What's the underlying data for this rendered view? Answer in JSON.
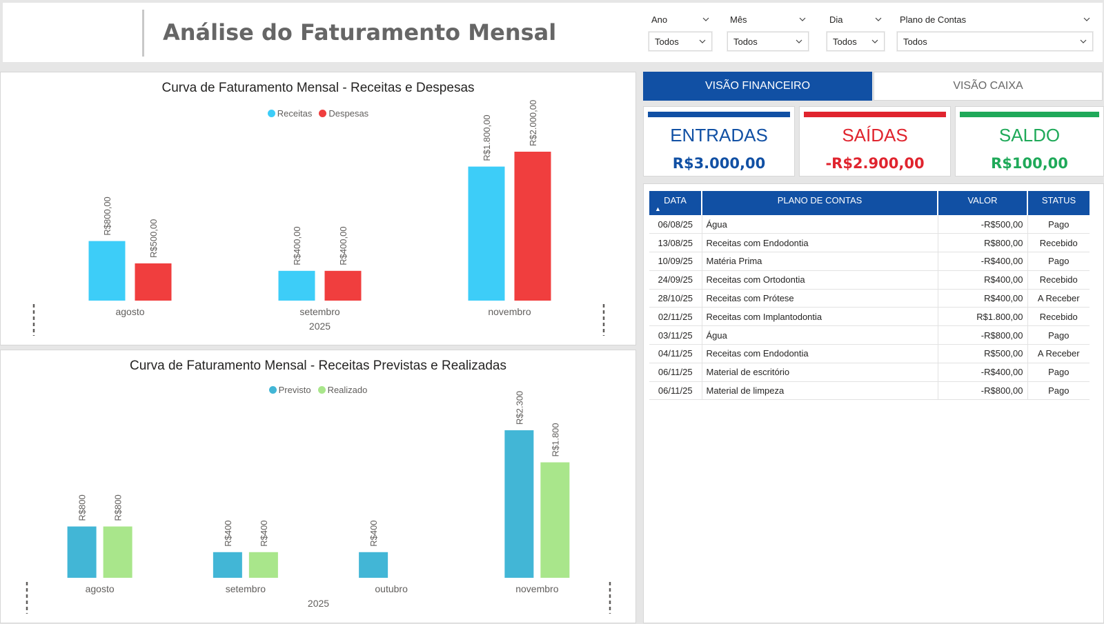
{
  "header": {
    "title": "Análise do Faturamento Mensal"
  },
  "filters": [
    {
      "label": "Ano",
      "value": "Todos"
    },
    {
      "label": "Mês",
      "value": "Todos"
    },
    {
      "label": "Dia",
      "value": "Todos"
    },
    {
      "label": "Plano de Contas",
      "value": "Todos"
    }
  ],
  "tabs": {
    "financeiro": "VISÃO FINANCEIRO",
    "caixa": "VISÃO CAIXA"
  },
  "cards": {
    "entradas": {
      "label": "ENTRADAS",
      "value": "R$3.000,00",
      "color": "#1150a4"
    },
    "saidas": {
      "label": "SAÍDAS",
      "value": "-R$2.900,00",
      "color": "#e0242e"
    },
    "saldo": {
      "label": "SALDO",
      "value": "R$100,00",
      "color": "#1fa959"
    }
  },
  "table": {
    "headers": {
      "data": "DATA",
      "plano": "PLANO DE CONTAS",
      "valor": "VALOR",
      "status": "STATUS"
    },
    "rows": [
      {
        "data": "06/08/25",
        "plano": "Água",
        "valor": "-R$500,00",
        "status": "Pago"
      },
      {
        "data": "13/08/25",
        "plano": "Receitas com Endodontia",
        "valor": "R$800,00",
        "status": "Recebido"
      },
      {
        "data": "10/09/25",
        "plano": "Matéria Prima",
        "valor": "-R$400,00",
        "status": "Pago"
      },
      {
        "data": "24/09/25",
        "plano": "Receitas com Ortodontia",
        "valor": "R$400,00",
        "status": "Recebido"
      },
      {
        "data": "28/10/25",
        "plano": "Receitas com Prótese",
        "valor": "R$400,00",
        "status": "A Receber"
      },
      {
        "data": "02/11/25",
        "plano": "Receitas com Implantodontia",
        "valor": "R$1.800,00",
        "status": "Recebido"
      },
      {
        "data": "03/11/25",
        "plano": "Água",
        "valor": "-R$800,00",
        "status": "Pago"
      },
      {
        "data": "04/11/25",
        "plano": "Receitas com Endodontia",
        "valor": "R$500,00",
        "status": "A Receber"
      },
      {
        "data": "06/11/25",
        "plano": "Material de escritório",
        "valor": "-R$400,00",
        "status": "Pago"
      },
      {
        "data": "06/11/25",
        "plano": "Material de limpeza",
        "valor": "-R$800,00",
        "status": "Pago"
      }
    ]
  },
  "chart_data": [
    {
      "type": "bar",
      "title": "Curva de Faturamento Mensal - Receitas e Despesas",
      "categories": [
        "agosto",
        "setembro",
        "novembro"
      ],
      "year_label": "2025",
      "series": [
        {
          "name": "Receitas",
          "color": "#3dcdf8",
          "values": [
            800,
            400,
            1800
          ],
          "labels": [
            "R$800,00",
            "R$400,00",
            "R$1.800,00"
          ]
        },
        {
          "name": "Despesas",
          "color": "#f03e3e",
          "values": [
            500,
            400,
            2000
          ],
          "labels": [
            "R$500,00",
            "R$400,00",
            "R$2.000,00"
          ]
        }
      ],
      "ylim": [
        0,
        2000
      ],
      "legend": "top-center",
      "grid": false
    },
    {
      "type": "bar",
      "title": "Curva de Faturamento Mensal - Receitas Previstas e Realizadas",
      "categories": [
        "agosto",
        "setembro",
        "outubro",
        "novembro"
      ],
      "year_label": "2025",
      "series": [
        {
          "name": "Previsto",
          "color": "#42b6d6",
          "values": [
            800,
            400,
            400,
            2300
          ],
          "labels": [
            "R$800",
            "R$400",
            "R$400",
            "R$2.300"
          ]
        },
        {
          "name": "Realizado",
          "color": "#a9e68b",
          "values": [
            800,
            400,
            null,
            1800
          ],
          "labels": [
            "R$800",
            "R$400",
            "",
            "R$1.800"
          ]
        }
      ],
      "ylim": [
        0,
        2300
      ],
      "legend": "top-center",
      "grid": false
    }
  ]
}
